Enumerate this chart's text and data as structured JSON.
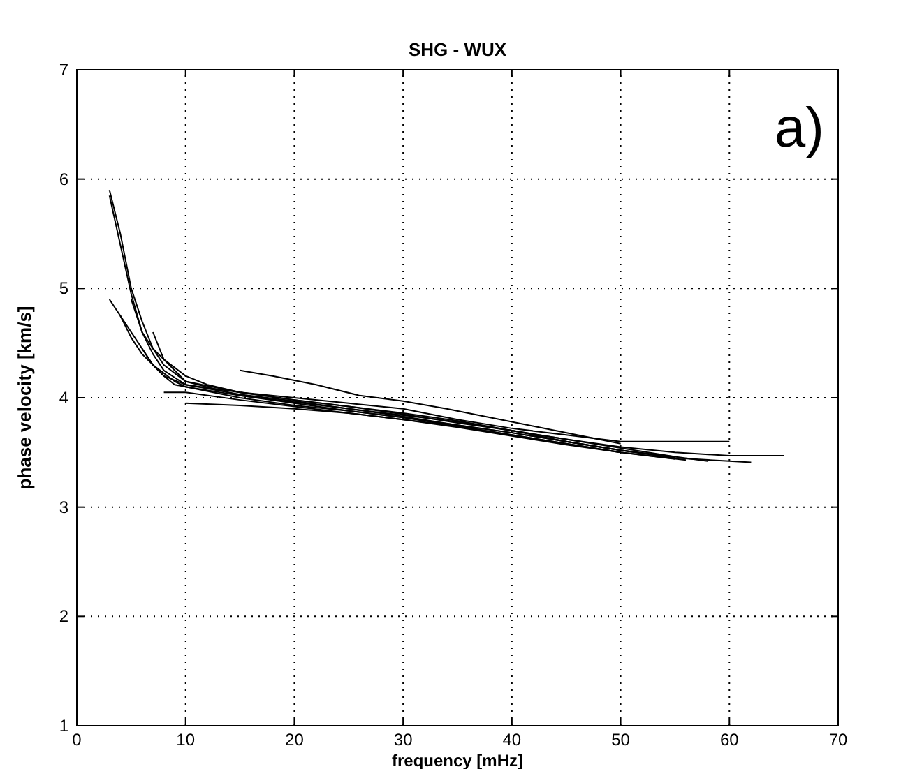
{
  "chart_data": {
    "type": "line",
    "title": "SHG  - WUX",
    "xlabel": "frequency [mHz]",
    "ylabel": "phase velocity [km/s]",
    "annotations": [
      "a)"
    ],
    "xlim": [
      0,
      70
    ],
    "ylim": [
      1,
      7
    ],
    "xticks": [
      0,
      10,
      20,
      30,
      40,
      50,
      60,
      70
    ],
    "yticks": [
      1,
      2,
      3,
      4,
      5,
      6,
      7
    ],
    "grid": true,
    "line_style": "solid",
    "marker": "none",
    "series": [
      {
        "color": "#000000",
        "x": [
          3,
          4,
          5,
          6,
          7,
          8,
          10,
          15,
          20,
          25,
          30,
          35,
          40,
          45,
          50,
          55,
          58
        ],
        "values": [
          5.9,
          5.5,
          5.0,
          4.7,
          4.45,
          4.3,
          4.15,
          4.05,
          3.98,
          3.92,
          3.86,
          3.79,
          3.7,
          3.62,
          3.54,
          3.46,
          3.42
        ]
      },
      {
        "color": "#000000",
        "x": [
          3,
          4,
          5,
          6,
          7,
          8,
          10,
          15,
          20,
          25,
          30,
          35,
          40,
          45,
          50,
          55,
          60
        ],
        "values": [
          5.85,
          5.4,
          4.95,
          4.6,
          4.4,
          4.25,
          4.12,
          4.05,
          4.0,
          3.95,
          3.9,
          3.8,
          3.72,
          3.66,
          3.6,
          3.6,
          3.6
        ]
      },
      {
        "color": "#000000",
        "x": [
          3,
          5,
          7,
          9,
          10,
          15,
          20,
          25,
          30,
          35,
          40,
          45,
          50,
          55,
          60,
          65
        ],
        "values": [
          4.9,
          4.6,
          4.3,
          4.15,
          4.1,
          4.02,
          3.96,
          3.9,
          3.84,
          3.78,
          3.7,
          3.62,
          3.55,
          3.5,
          3.47,
          3.47
        ]
      },
      {
        "color": "#000000",
        "x": [
          4,
          5,
          6,
          8,
          10,
          15,
          20,
          25,
          30,
          35,
          40,
          45,
          50,
          55,
          60,
          62
        ],
        "values": [
          4.75,
          4.55,
          4.4,
          4.2,
          4.12,
          4.03,
          3.97,
          3.9,
          3.83,
          3.75,
          3.68,
          3.6,
          3.52,
          3.45,
          3.42,
          3.41
        ]
      },
      {
        "color": "#000000",
        "x": [
          5,
          6,
          7,
          8,
          10,
          12,
          15,
          20,
          25,
          30,
          35,
          40,
          45,
          50,
          55
        ],
        "values": [
          4.9,
          4.6,
          4.45,
          4.35,
          4.2,
          4.12,
          4.05,
          3.98,
          3.92,
          3.85,
          3.77,
          3.7,
          3.6,
          3.52,
          3.45
        ]
      },
      {
        "color": "#000000",
        "x": [
          6,
          7,
          8,
          9,
          10,
          15,
          20,
          25,
          30,
          35,
          40,
          45,
          50,
          56
        ],
        "values": [
          4.45,
          4.3,
          4.2,
          4.12,
          4.1,
          4.0,
          3.93,
          3.88,
          3.82,
          3.74,
          3.66,
          3.58,
          3.5,
          3.43
        ]
      },
      {
        "color": "#000000",
        "x": [
          8,
          10,
          15,
          20,
          25,
          30,
          35,
          40,
          45,
          50,
          55
        ],
        "values": [
          4.05,
          4.05,
          3.98,
          3.92,
          3.86,
          3.8,
          3.74,
          3.66,
          3.58,
          3.5,
          3.44
        ]
      },
      {
        "color": "#000000",
        "x": [
          15,
          18,
          22,
          26,
          30,
          34,
          38,
          42,
          46,
          50
        ],
        "values": [
          4.25,
          4.2,
          4.12,
          4.02,
          3.97,
          3.9,
          3.82,
          3.74,
          3.66,
          3.58
        ]
      },
      {
        "color": "#000000",
        "x": [
          7,
          8,
          10,
          15,
          20,
          25,
          30,
          35,
          40,
          45,
          50,
          55
        ],
        "values": [
          4.6,
          4.35,
          4.15,
          4.02,
          3.95,
          3.88,
          3.82,
          3.75,
          3.68,
          3.6,
          3.52,
          3.46
        ]
      },
      {
        "color": "#000000",
        "x": [
          10,
          15,
          20,
          25,
          30,
          35,
          40,
          45,
          50
        ],
        "values": [
          3.95,
          3.93,
          3.9,
          3.86,
          3.8,
          3.73,
          3.65,
          3.57,
          3.5
        ]
      }
    ]
  }
}
